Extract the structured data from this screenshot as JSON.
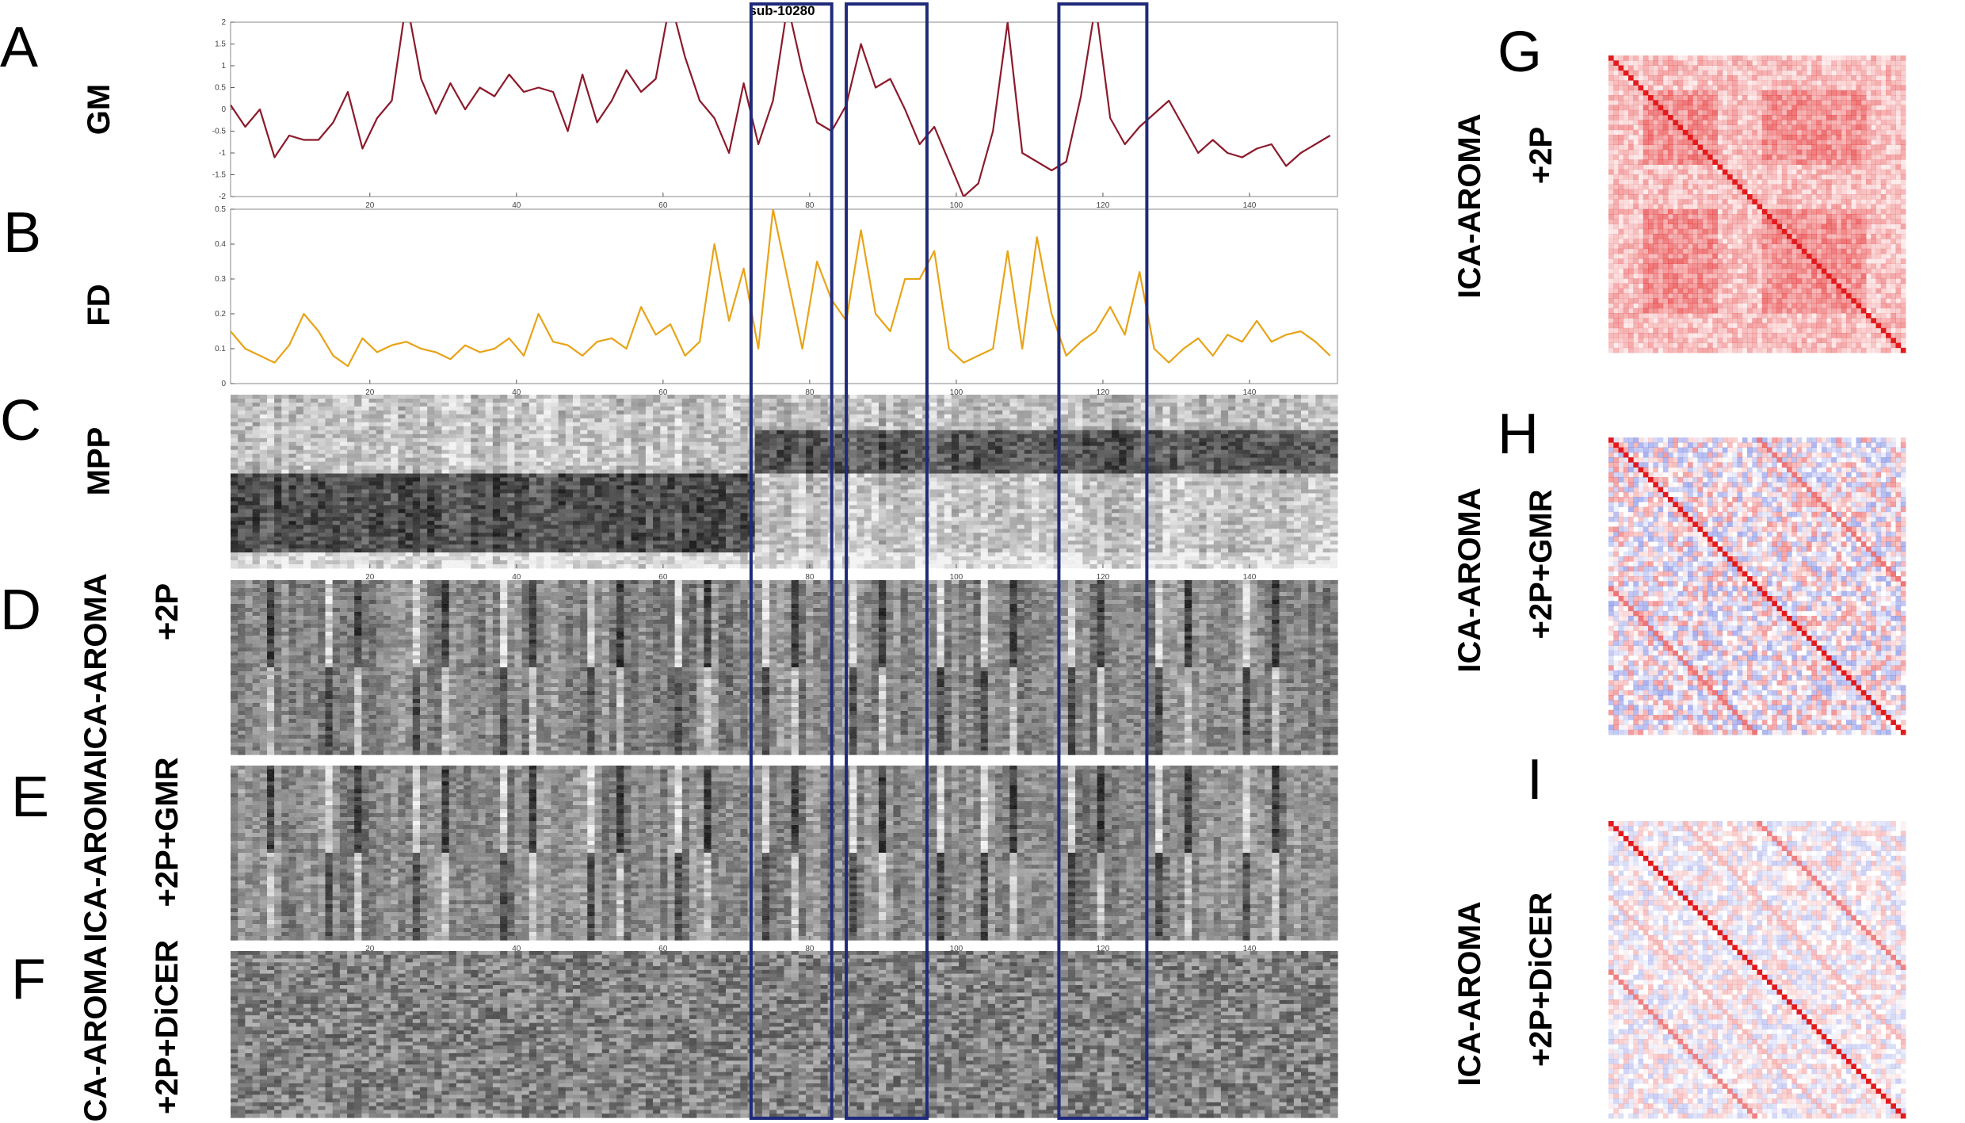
{
  "figure_title": "sub-10280",
  "panels": [
    {
      "letter": "A",
      "label": "GM"
    },
    {
      "letter": "B",
      "label": "FD"
    },
    {
      "letter": "C",
      "label": "MPP"
    },
    {
      "letter": "D",
      "label_outer": "ICA-AROMA",
      "label_inner": "+2P"
    },
    {
      "letter": "E",
      "label_outer": "ICA-AROMA",
      "label_inner": "+2P+GMR"
    },
    {
      "letter": "F",
      "label_outer": "ICA-AROMA",
      "label_inner": "+2P+DiCER"
    },
    {
      "letter": "G",
      "label_outer": "ICA-AROMA",
      "label_inner": "+2P"
    },
    {
      "letter": "H",
      "label_outer": "ICA-AROMA",
      "label_inner": "+2P+GMR"
    },
    {
      "letter": "I",
      "label_outer": "ICA-AROMA",
      "label_inner": "+2P+DiCER"
    }
  ],
  "x_ticks": [
    "20",
    "40",
    "60",
    "80",
    "100",
    "120",
    "140"
  ],
  "highlight_windows": [
    [
      72,
      83
    ],
    [
      85,
      96
    ],
    [
      114,
      126
    ]
  ],
  "colors": {
    "gm_line": "#8b1a2b",
    "fd_line": "#e8a317",
    "highlight_box": "#1f2a7a",
    "corr_pos": "#e31a1c",
    "corr_neg": "#3d4fd6"
  },
  "chart_data": [
    {
      "type": "line",
      "panel": "A",
      "y_ticks": [
        "2",
        "1.5",
        "1",
        "0.5",
        "0",
        "-0.5",
        "-1",
        "-1.5",
        "-2"
      ],
      "xlim": [
        1,
        152
      ],
      "ylim": [
        -2,
        2
      ],
      "x": [
        1,
        3,
        5,
        7,
        9,
        11,
        13,
        15,
        17,
        19,
        21,
        23,
        25,
        27,
        29,
        31,
        33,
        35,
        37,
        39,
        41,
        43,
        45,
        47,
        49,
        51,
        53,
        55,
        57,
        59,
        61,
        63,
        65,
        67,
        69,
        71,
        73,
        75,
        77,
        79,
        81,
        83,
        85,
        87,
        89,
        91,
        93,
        95,
        97,
        99,
        101,
        103,
        105,
        107,
        109,
        111,
        113,
        115,
        117,
        119,
        121,
        123,
        125,
        127,
        129,
        131,
        133,
        135,
        137,
        139,
        141,
        143,
        145,
        147,
        149,
        151
      ],
      "y": [
        0.1,
        -0.4,
        0.0,
        -1.1,
        -0.6,
        -0.7,
        -0.7,
        -0.3,
        0.4,
        -0.9,
        -0.2,
        0.2,
        2.5,
        0.7,
        -0.1,
        0.6,
        0.0,
        0.5,
        0.3,
        0.8,
        0.4,
        0.5,
        0.4,
        -0.5,
        0.8,
        -0.3,
        0.2,
        0.9,
        0.4,
        0.7,
        2.5,
        1.2,
        0.2,
        -0.2,
        -1.0,
        0.6,
        -0.8,
        0.2,
        2.4,
        0.9,
        -0.3,
        -0.5,
        0.1,
        1.5,
        0.5,
        0.7,
        0.0,
        -0.8,
        -0.4,
        -1.2,
        -2.0,
        -1.7,
        -0.5,
        2.0,
        -1.0,
        -1.2,
        -1.4,
        -1.2,
        0.3,
        2.4,
        -0.2,
        -0.8,
        -0.4,
        -0.1,
        0.2,
        -0.4,
        -1.0,
        -0.7,
        -1.0,
        -1.1,
        -0.9,
        -0.8,
        -1.3,
        -1.0,
        -0.8,
        -0.6
      ]
    },
    {
      "type": "line",
      "panel": "B",
      "y_ticks": [
        "0.5",
        "0.4",
        "0.3",
        "0.2",
        "0.1",
        "0"
      ],
      "xlim": [
        1,
        152
      ],
      "ylim": [
        0,
        0.5
      ],
      "x": [
        1,
        3,
        5,
        7,
        9,
        11,
        13,
        15,
        17,
        19,
        21,
        23,
        25,
        27,
        29,
        31,
        33,
        35,
        37,
        39,
        41,
        43,
        45,
        47,
        49,
        51,
        53,
        55,
        57,
        59,
        61,
        63,
        65,
        67,
        69,
        71,
        73,
        75,
        77,
        79,
        81,
        83,
        85,
        87,
        89,
        91,
        93,
        95,
        97,
        99,
        101,
        103,
        105,
        107,
        109,
        111,
        113,
        115,
        117,
        119,
        121,
        123,
        125,
        127,
        129,
        131,
        133,
        135,
        137,
        139,
        141,
        143,
        145,
        147,
        149,
        151
      ],
      "y": [
        0.15,
        0.1,
        0.08,
        0.06,
        0.11,
        0.2,
        0.15,
        0.08,
        0.05,
        0.13,
        0.09,
        0.11,
        0.12,
        0.1,
        0.09,
        0.07,
        0.11,
        0.09,
        0.1,
        0.13,
        0.08,
        0.2,
        0.12,
        0.11,
        0.08,
        0.12,
        0.13,
        0.1,
        0.22,
        0.14,
        0.17,
        0.08,
        0.12,
        0.4,
        0.18,
        0.33,
        0.1,
        0.5,
        0.3,
        0.1,
        0.35,
        0.24,
        0.18,
        0.44,
        0.2,
        0.15,
        0.3,
        0.3,
        0.38,
        0.1,
        0.06,
        0.08,
        0.1,
        0.38,
        0.1,
        0.42,
        0.2,
        0.08,
        0.12,
        0.15,
        0.22,
        0.14,
        0.32,
        0.1,
        0.06,
        0.1,
        0.13,
        0.08,
        0.14,
        0.12,
        0.18,
        0.12,
        0.14,
        0.15,
        0.12,
        0.08
      ]
    },
    {
      "type": "heatmap",
      "panel": "C",
      "xlim": [
        1,
        152
      ]
    },
    {
      "type": "heatmap",
      "panel": "D",
      "xlim": [
        1,
        152
      ]
    },
    {
      "type": "heatmap",
      "panel": "E",
      "xlim": [
        1,
        152
      ]
    },
    {
      "type": "heatmap",
      "panel": "F",
      "xlim": [
        1,
        152
      ]
    },
    {
      "type": "heatmap",
      "panel": "G"
    },
    {
      "type": "heatmap",
      "panel": "H"
    },
    {
      "type": "heatmap",
      "panel": "I"
    }
  ]
}
